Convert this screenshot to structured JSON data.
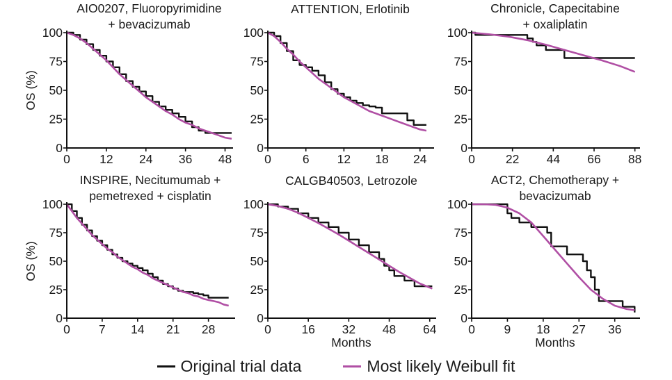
{
  "colors": {
    "original": "#111111",
    "weibull": "#b04fa4"
  },
  "legend": [
    {
      "label": "Original trial data",
      "color": "#111111"
    },
    {
      "label": "Most likely Weibull fit",
      "color": "#b04fa4"
    }
  ],
  "chart_data": [
    {
      "type": "line",
      "title": [
        "AIO0207, Fluoropyrimidine",
        "+ bevacizumab"
      ],
      "ylabel": "OS (%)",
      "xlabel": "",
      "xlim": [
        0,
        50
      ],
      "ylim": [
        0,
        100
      ],
      "xticks": [
        0,
        12,
        24,
        36,
        48
      ],
      "yticks": [
        0,
        25,
        50,
        75,
        100
      ],
      "series": [
        {
          "name": "Original trial data",
          "step": true,
          "x": [
            0,
            2,
            4,
            6,
            8,
            10,
            12,
            14,
            16,
            18,
            20,
            22,
            24,
            26,
            28,
            30,
            32,
            34,
            36,
            38,
            40,
            42,
            44,
            46,
            48,
            50
          ],
          "y": [
            100,
            98,
            94,
            90,
            85,
            80,
            75,
            70,
            64,
            58,
            53,
            49,
            45,
            40,
            36,
            33,
            30,
            27,
            23,
            18,
            15,
            13,
            13,
            13,
            13,
            13
          ]
        },
        {
          "name": "Most likely Weibull fit",
          "step": false,
          "x": [
            0,
            2,
            4,
            6,
            8,
            10,
            12,
            14,
            16,
            18,
            20,
            22,
            24,
            26,
            28,
            30,
            32,
            34,
            36,
            38,
            40,
            42,
            44,
            46,
            48,
            50
          ],
          "y": [
            100,
            98,
            95,
            91,
            86,
            81,
            76,
            70,
            64,
            59,
            54,
            49,
            44,
            40,
            36,
            32,
            29,
            25,
            22,
            20,
            17,
            15,
            13,
            11,
            9,
            8
          ]
        }
      ]
    },
    {
      "type": "line",
      "title": [
        "ATTENTION, Erlotinib"
      ],
      "ylabel": "",
      "xlabel": "",
      "xlim": [
        0,
        26
      ],
      "ylim": [
        0,
        100
      ],
      "xticks": [
        0,
        6,
        12,
        18,
        24
      ],
      "yticks": [
        0,
        25,
        50,
        75,
        100
      ],
      "series": [
        {
          "name": "Original trial data",
          "step": true,
          "x": [
            0,
            1,
            2,
            3,
            4,
            5,
            6,
            7,
            8,
            9,
            10,
            11,
            12,
            13,
            14,
            15,
            16,
            17,
            18,
            19,
            20,
            21,
            22,
            23,
            24,
            25
          ],
          "y": [
            100,
            97,
            91,
            84,
            76,
            72,
            70,
            67,
            63,
            57,
            51,
            47,
            44,
            41,
            39,
            37,
            36,
            35,
            30,
            30,
            30,
            30,
            24,
            20,
            20,
            20
          ]
        },
        {
          "name": "Most likely Weibull fit",
          "step": false,
          "x": [
            0,
            1,
            2,
            3,
            4,
            5,
            6,
            7,
            8,
            9,
            10,
            11,
            12,
            13,
            14,
            15,
            16,
            17,
            18,
            19,
            20,
            21,
            22,
            23,
            24,
            25
          ],
          "y": [
            100,
            97,
            92,
            86,
            81,
            75,
            70,
            65,
            60,
            56,
            52,
            48,
            44,
            41,
            38,
            35,
            32,
            30,
            28,
            26,
            24,
            22,
            20,
            18,
            16,
            15
          ]
        }
      ]
    },
    {
      "type": "line",
      "title": [
        "Chronicle, Capecitabine",
        "+ oxaliplatin"
      ],
      "ylabel": "",
      "xlabel": "",
      "xlim": [
        0,
        90
      ],
      "ylim": [
        0,
        100
      ],
      "xticks": [
        0,
        22,
        44,
        66,
        88
      ],
      "yticks": [
        0,
        25,
        50,
        75,
        100
      ],
      "series": [
        {
          "name": "Original trial data",
          "step": true,
          "x": [
            0,
            2,
            25,
            30,
            33,
            35,
            40,
            44,
            50,
            88
          ],
          "y": [
            100,
            98,
            98,
            95,
            92,
            89,
            85,
            85,
            78,
            78
          ]
        },
        {
          "name": "Most likely Weibull fit",
          "step": false,
          "x": [
            0,
            10,
            20,
            30,
            40,
            50,
            60,
            70,
            80,
            88
          ],
          "y": [
            100,
            98.5,
            96.5,
            93.5,
            89.5,
            85,
            80.5,
            76,
            71,
            66
          ]
        }
      ]
    },
    {
      "type": "line",
      "title": [
        "INSPIRE, Necitumumab +",
        "pemetrexed + cisplatin"
      ],
      "ylabel": "OS (%)",
      "xlabel": "",
      "xlim": [
        0,
        33
      ],
      "ylim": [
        0,
        100
      ],
      "xticks": [
        0,
        7,
        14,
        21,
        28
      ],
      "yticks": [
        0,
        25,
        50,
        75,
        100
      ],
      "series": [
        {
          "name": "Original trial data",
          "step": true,
          "x": [
            0,
            1,
            2,
            3,
            4,
            5,
            6,
            7,
            8,
            9,
            10,
            11,
            12,
            13,
            14,
            15,
            16,
            17,
            18,
            19,
            20,
            21,
            22,
            23,
            24,
            25,
            26,
            27,
            28,
            29,
            30,
            31,
            32
          ],
          "y": [
            100,
            94,
            88,
            82,
            77,
            72,
            68,
            64,
            60,
            56,
            53,
            50,
            48,
            46,
            44,
            42,
            39,
            36,
            33,
            30,
            28,
            26,
            24,
            23,
            23,
            22,
            21,
            20,
            18,
            18,
            18,
            18,
            18
          ]
        },
        {
          "name": "Most likely Weibull fit",
          "step": false,
          "x": [
            0,
            1,
            2,
            3,
            4,
            5,
            6,
            7,
            8,
            9,
            10,
            11,
            12,
            13,
            14,
            15,
            16,
            17,
            18,
            19,
            20,
            21,
            22,
            23,
            24,
            25,
            26,
            27,
            28,
            29,
            30,
            31,
            32
          ],
          "y": [
            100,
            94,
            88,
            83,
            78,
            73,
            69,
            65,
            61,
            58,
            54,
            51,
            48,
            45,
            43,
            40,
            38,
            35,
            33,
            31,
            29,
            27,
            25,
            23,
            22,
            20,
            19,
            17,
            16,
            15,
            14,
            12,
            11
          ]
        }
      ]
    },
    {
      "type": "line",
      "title": [
        "CALGB40503, Letrozole"
      ],
      "ylabel": "",
      "xlabel": "Months",
      "xlim": [
        0,
        66
      ],
      "ylim": [
        0,
        100
      ],
      "xticks": [
        0,
        16,
        32,
        48,
        64
      ],
      "yticks": [
        0,
        25,
        50,
        75,
        100
      ],
      "series": [
        {
          "name": "Original trial data",
          "step": true,
          "x": [
            0,
            4,
            8,
            12,
            16,
            20,
            24,
            28,
            32,
            36,
            40,
            44,
            46,
            48,
            50,
            54,
            58,
            62,
            65
          ],
          "y": [
            100,
            98,
            96,
            92,
            88,
            84,
            80,
            75,
            69,
            64,
            58,
            52,
            46,
            42,
            37,
            33,
            28,
            28,
            28
          ]
        },
        {
          "name": "Most likely Weibull fit",
          "step": false,
          "x": [
            0,
            4,
            8,
            12,
            16,
            20,
            24,
            28,
            32,
            36,
            40,
            44,
            48,
            52,
            56,
            60,
            65
          ],
          "y": [
            100,
            98.5,
            96,
            92.5,
            88,
            83.5,
            78.5,
            73.5,
            68,
            62.5,
            57,
            51.5,
            46,
            40.5,
            35.5,
            30.5,
            26
          ]
        }
      ]
    },
    {
      "type": "line",
      "title": [
        "ACT2, Chemotherapy +",
        "bevacizumab"
      ],
      "ylabel": "",
      "xlabel": "Months",
      "xlim": [
        0,
        42
      ],
      "ylim": [
        0,
        100
      ],
      "xticks": [
        0,
        9,
        18,
        27,
        36
      ],
      "yticks": [
        0,
        25,
        50,
        75,
        100
      ],
      "series": [
        {
          "name": "Original trial data",
          "step": true,
          "x": [
            0,
            9,
            10,
            12,
            14,
            15,
            17,
            19,
            20,
            21,
            24,
            26,
            28,
            29,
            30,
            31,
            32,
            33,
            36,
            38,
            40,
            41
          ],
          "y": [
            100,
            92,
            88,
            84,
            84,
            80,
            80,
            75,
            63,
            63,
            56,
            56,
            50,
            42,
            36,
            25,
            15,
            15,
            15,
            10,
            10,
            5
          ]
        },
        {
          "name": "Most likely Weibull fit",
          "step": false,
          "x": [
            0,
            3,
            6,
            9,
            12,
            15,
            18,
            21,
            24,
            27,
            30,
            33,
            36,
            39,
            41
          ],
          "y": [
            100,
            100,
            99.5,
            97,
            92,
            84,
            72,
            60,
            48,
            36,
            25,
            17,
            11,
            8,
            7
          ]
        }
      ]
    }
  ]
}
